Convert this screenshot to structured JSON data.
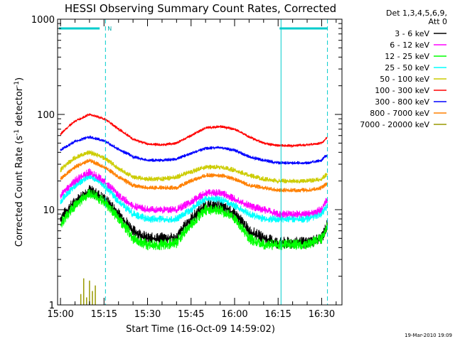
{
  "chart_data": {
    "type": "line",
    "title": "HESSI Observing Summary Count Rates, Corrected",
    "xlabel": "Start Time (16-Oct-09 14:59:02)",
    "ylabel_main": "Corrected Count Rate (s",
    "ylabel_sup1": "-1",
    "ylabel_mid": " detector",
    "ylabel_sup2": "-1",
    "ylabel_end": ")",
    "y_scale": "log",
    "ylim": [
      1,
      1000
    ],
    "xlim_minutes": [
      -1,
      97
    ],
    "x_ticks": [
      {
        "label": "15:00",
        "minutes": 0
      },
      {
        "label": "15:15",
        "minutes": 15
      },
      {
        "label": "15:30",
        "minutes": 30
      },
      {
        "label": "15:45",
        "minutes": 45
      },
      {
        "label": "16:00",
        "minutes": 60
      },
      {
        "label": "16:15",
        "minutes": 75
      },
      {
        "label": "16:30",
        "minutes": 90
      }
    ],
    "y_ticks": [
      {
        "label": "1",
        "value": 1
      },
      {
        "label": "10",
        "value": 10
      },
      {
        "label": "100",
        "value": 100
      },
      {
        "label": "1000",
        "value": 1000
      }
    ],
    "legend_header": [
      "Det 1,3,4,5,6,9,",
      "Att 0"
    ],
    "legend_position": "right",
    "series": [
      {
        "name": "3 - 6 keV",
        "color": "#000000",
        "x": [
          0,
          5,
          10,
          15,
          20,
          25,
          30,
          35,
          40,
          45,
          50,
          55,
          60,
          65,
          70,
          75,
          80,
          85,
          90,
          92
        ],
        "values": [
          8,
          12,
          16,
          13,
          9,
          6,
          5,
          5,
          5,
          8,
          11,
          11,
          9,
          6,
          5,
          4.5,
          4.5,
          4.5,
          5,
          7
        ]
      },
      {
        "name": "6 - 12 keV",
        "color": "#ff00ff",
        "x": [
          0,
          5,
          10,
          15,
          20,
          25,
          30,
          35,
          40,
          45,
          50,
          55,
          60,
          65,
          70,
          75,
          80,
          85,
          90,
          92
        ],
        "values": [
          14,
          20,
          25,
          20,
          14,
          11,
          10,
          10,
          10,
          12,
          15,
          15,
          13,
          11,
          10,
          9,
          9,
          9,
          10,
          13
        ]
      },
      {
        "name": "12 - 25 keV",
        "color": "#00ff00",
        "x": [
          0,
          5,
          10,
          15,
          20,
          25,
          30,
          35,
          40,
          45,
          50,
          55,
          60,
          65,
          70,
          75,
          80,
          85,
          90,
          92
        ],
        "values": [
          7,
          11,
          15,
          12,
          8,
          5,
          4.3,
          4.3,
          4.5,
          7,
          10,
          10,
          8,
          5,
          4.3,
          4.3,
          4.3,
          4.3,
          5,
          7
        ]
      },
      {
        "name": "25 - 50 keV",
        "color": "#00ffff",
        "x": [
          0,
          5,
          10,
          15,
          20,
          25,
          30,
          35,
          40,
          45,
          50,
          55,
          60,
          65,
          70,
          75,
          80,
          85,
          90,
          92
        ],
        "values": [
          12,
          18,
          23,
          18,
          12,
          9,
          8,
          8,
          8,
          10,
          13,
          13,
          11,
          9,
          8,
          8,
          8,
          8,
          9,
          11
        ]
      },
      {
        "name": "50 - 100 keV",
        "color": "#cccc00",
        "x": [
          0,
          5,
          10,
          15,
          20,
          25,
          30,
          35,
          40,
          45,
          50,
          55,
          60,
          65,
          70,
          75,
          80,
          85,
          90,
          92
        ],
        "values": [
          26,
          35,
          40,
          35,
          27,
          22,
          21,
          21,
          22,
          25,
          28,
          28,
          26,
          23,
          21,
          20,
          20,
          20,
          21,
          24
        ]
      },
      {
        "name": "100 - 300 keV",
        "color": "#ff0000",
        "x": [
          0,
          5,
          10,
          15,
          20,
          25,
          30,
          35,
          40,
          45,
          50,
          55,
          60,
          65,
          70,
          75,
          80,
          85,
          90,
          92
        ],
        "values": [
          62,
          85,
          100,
          90,
          70,
          55,
          49,
          48,
          50,
          60,
          72,
          75,
          70,
          58,
          50,
          47,
          47,
          48,
          50,
          58
        ]
      },
      {
        "name": "300 - 800 keV",
        "color": "#0000ff",
        "x": [
          0,
          5,
          10,
          15,
          20,
          25,
          30,
          35,
          40,
          45,
          50,
          55,
          60,
          65,
          70,
          75,
          80,
          85,
          90,
          92
        ],
        "values": [
          42,
          52,
          58,
          53,
          43,
          36,
          33,
          33,
          34,
          39,
          44,
          45,
          42,
          36,
          33,
          31,
          31,
          31,
          33,
          38
        ]
      },
      {
        "name": "800 - 7000 keV",
        "color": "#ff8000",
        "x": [
          0,
          5,
          10,
          15,
          20,
          25,
          30,
          35,
          40,
          45,
          50,
          55,
          60,
          65,
          70,
          75,
          80,
          85,
          90,
          92
        ],
        "values": [
          21,
          28,
          33,
          28,
          22,
          18,
          17,
          17,
          17,
          20,
          23,
          23,
          21,
          18,
          17,
          16,
          16,
          16,
          17,
          19
        ]
      },
      {
        "name": "7000 - 20000 keV",
        "color": "#999900",
        "x": [
          7,
          8,
          9,
          10,
          11,
          12
        ],
        "values": [
          1.3,
          1.9,
          1.2,
          1.8,
          1.4,
          1.6
        ]
      }
    ],
    "annotations": {
      "top_marker_label": "N",
      "cyan_bar_segments_minutes": [
        [
          -0.5,
          13.5
        ],
        [
          75.5,
          92
        ]
      ],
      "dashed_lines_minutes": [
        15.5,
        92
      ],
      "solid_line_minutes": 76,
      "ymarker_value": 800
    },
    "footer_date": "19-Mar-2010 19:09"
  }
}
